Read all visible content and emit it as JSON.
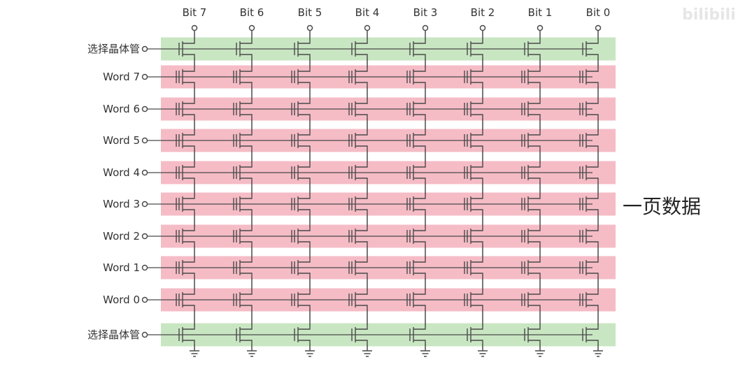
{
  "diagram": {
    "bit_lines": [
      "Bit 7",
      "Bit 6",
      "Bit 5",
      "Bit 4",
      "Bit 3",
      "Bit 2",
      "Bit 1",
      "Bit 0"
    ],
    "rows": [
      {
        "label": "选择晶体管",
        "kind": "select",
        "color": "#c8e6c2"
      },
      {
        "label": "Word 7",
        "kind": "word",
        "color": "#f5bcc6"
      },
      {
        "label": "Word 6",
        "kind": "word",
        "color": "#f5bcc6"
      },
      {
        "label": "Word 5",
        "kind": "word",
        "color": "#f5bcc6"
      },
      {
        "label": "Word 4",
        "kind": "word",
        "color": "#f5bcc6"
      },
      {
        "label": "Word 3",
        "kind": "word",
        "color": "#f5bcc6"
      },
      {
        "label": "Word 2",
        "kind": "word",
        "color": "#f5bcc6"
      },
      {
        "label": "Word 1",
        "kind": "word",
        "color": "#f5bcc6"
      },
      {
        "label": "Word 0",
        "kind": "word",
        "color": "#f5bcc6"
      },
      {
        "label": "选择晶体管",
        "kind": "select",
        "color": "#c8e6c2"
      }
    ],
    "page_label": "一页数据",
    "watermark": "bilibili",
    "wire_color": "#4a4a4a"
  }
}
